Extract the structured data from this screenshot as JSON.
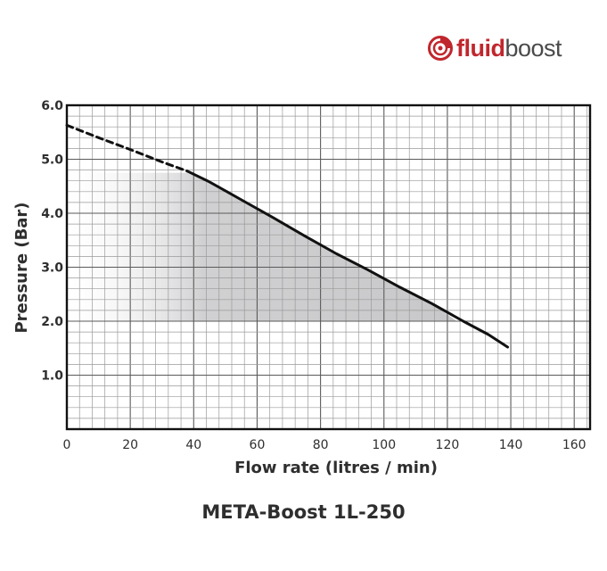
{
  "brand": {
    "name_bold": "fluid",
    "name_light": "boost",
    "color_bold": "#c0272d",
    "color_light": "#4a4a4a"
  },
  "caption": "META-Boost 1L-250",
  "chart_data": {
    "type": "line",
    "xlabel": "Flow rate (litres / min)",
    "ylabel": "Pressure (Bar)",
    "xlim": [
      0,
      165
    ],
    "ylim": [
      0,
      6.0
    ],
    "x_ticks": [
      "0",
      "20",
      "40",
      "60",
      "80",
      "100",
      "120",
      "140",
      "160"
    ],
    "y_ticks": [
      "1.0",
      "2.0",
      "3.0",
      "4.0",
      "5.0",
      "6.0"
    ],
    "grid": true,
    "series": [
      {
        "style": "dashed",
        "color": "#111111",
        "points": [
          [
            0,
            5.63
          ],
          [
            10,
            5.4
          ],
          [
            20,
            5.18
          ],
          [
            30,
            4.95
          ],
          [
            38,
            4.78
          ]
        ]
      },
      {
        "style": "solid",
        "color": "#111111",
        "points": [
          [
            38,
            4.78
          ],
          [
            45,
            4.58
          ],
          [
            55,
            4.25
          ],
          [
            65,
            3.92
          ],
          [
            75,
            3.58
          ],
          [
            85,
            3.25
          ],
          [
            95,
            2.95
          ],
          [
            105,
            2.63
          ],
          [
            115,
            2.33
          ],
          [
            125,
            2.0
          ],
          [
            133,
            1.75
          ],
          [
            139,
            1.52
          ]
        ]
      }
    ],
    "shaded_region": {
      "color": "#c8c8ca",
      "points": [
        [
          0,
          4.75
        ],
        [
          38,
          4.75
        ],
        [
          45,
          4.58
        ],
        [
          55,
          4.25
        ],
        [
          65,
          3.92
        ],
        [
          75,
          3.58
        ],
        [
          85,
          3.25
        ],
        [
          95,
          2.95
        ],
        [
          105,
          2.63
        ],
        [
          115,
          2.33
        ],
        [
          123,
          2.0
        ],
        [
          0,
          2.0
        ]
      ]
    }
  }
}
